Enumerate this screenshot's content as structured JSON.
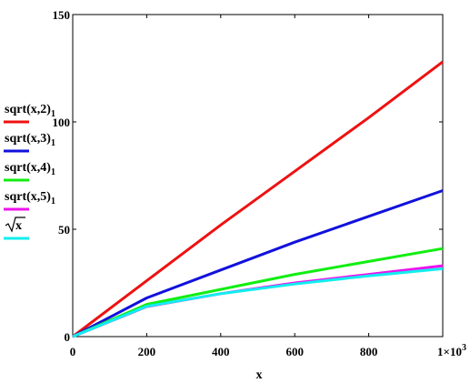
{
  "chart_data": {
    "type": "line",
    "xlabel": "x",
    "ylabel": "",
    "xlim": [
      0,
      1000
    ],
    "ylim": [
      0,
      150
    ],
    "x_ticks": [
      0,
      200,
      400,
      600,
      800,
      1000
    ],
    "x_tick_labels": [
      "0",
      "200",
      "400",
      "600",
      "800",
      "1×10"
    ],
    "x_tick_exponent": "3",
    "y_ticks": [
      0,
      50,
      100,
      150
    ],
    "y_tick_labels": [
      "0",
      "50",
      "100",
      "150"
    ],
    "grid": false,
    "legend_position": "left",
    "series": [
      {
        "name_main": "sqrt(x,2)",
        "name_sub": "1",
        "color": "#ee1111",
        "x": [
          0,
          200,
          400,
          600,
          800,
          1000
        ],
        "values": [
          0,
          26,
          52,
          77,
          102,
          128
        ]
      },
      {
        "name_main": "sqrt(x,3)",
        "name_sub": "1",
        "color": "#1111dd",
        "x": [
          0,
          200,
          400,
          600,
          800,
          1000
        ],
        "values": [
          0,
          18,
          31,
          44,
          56,
          68
        ]
      },
      {
        "name_main": "sqrt(x,4)",
        "name_sub": "1",
        "color": "#11ee11",
        "x": [
          0,
          200,
          400,
          600,
          800,
          1000
        ],
        "values": [
          0,
          15,
          22,
          29,
          35,
          41
        ]
      },
      {
        "name_main": "sqrt(x,5)",
        "name_sub": "1",
        "color": "#ee11ee",
        "x": [
          0,
          200,
          400,
          600,
          800,
          1000
        ],
        "values": [
          0,
          14,
          20,
          25,
          29,
          33
        ]
      },
      {
        "name_main": "x",
        "name_sub": "",
        "radical": true,
        "color": "#11eeee",
        "x": [
          0,
          200,
          400,
          600,
          800,
          1000
        ],
        "values": [
          0,
          14.1,
          20,
          24.5,
          28.3,
          31.6
        ]
      }
    ]
  }
}
